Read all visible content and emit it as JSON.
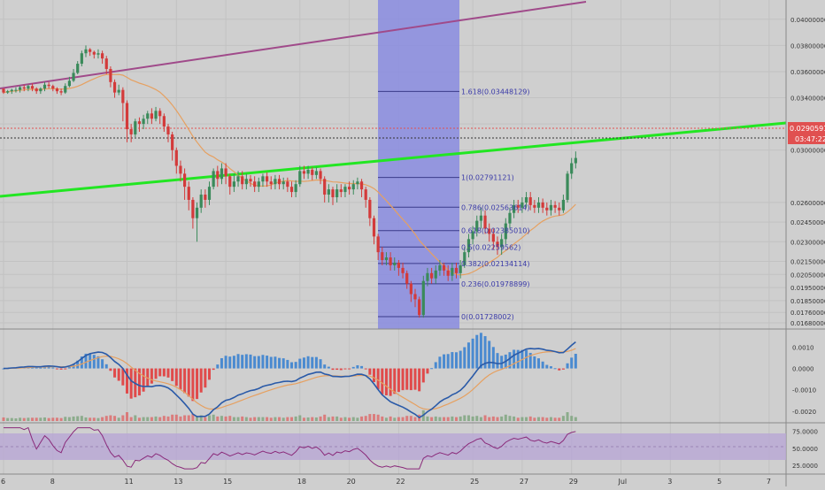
{
  "chart_data": [
    {
      "type": "candlestick",
      "y_scale": {
        "min": 0.0166,
        "max": 0.0412
      },
      "price_ticks": [
        "0.04000000",
        "0.03800000",
        "0.03600000",
        "0.03400000",
        "0.03200000",
        "0.03000000",
        "0.02600000",
        "0.02450000",
        "0.02300000",
        "0.02150000",
        "0.02050000",
        "0.01950000",
        "0.01850000",
        "0.01760000",
        "0.01680000"
      ],
      "current_price_label": "0.02905911",
      "countdown_label": "03:47:22",
      "fib_levels": [
        {
          "label": "1.618(0.03448129)",
          "price": 0.03448129
        },
        {
          "label": "1(0.02791121)",
          "price": 0.02791121
        },
        {
          "label": "0.786(0.02563614)",
          "price": 0.02563614
        },
        {
          "label": "0.618(0.02385010)",
          "price": 0.0238501
        },
        {
          "label": "0.5(0.02259562)",
          "price": 0.02259562
        },
        {
          "label": "0.382(0.02134114)",
          "price": 0.02134114
        },
        {
          "label": "0.236(0.01978899)",
          "price": 0.01978899
        },
        {
          "label": "0(0.01728002)",
          "price": 0.01728002
        }
      ],
      "fib_box_color": "#8a8ce0",
      "trendline_color": "#22e622",
      "channel_color": "#a04a8a",
      "ma_color": "#e6a060",
      "up_color": "#3a8a5a",
      "down_color": "#d33a3a",
      "candles": [
        [
          0.0347,
          0.0344,
          0.0343,
          0.0346
        ],
        [
          0.0344,
          0.0345,
          0.0343,
          0.0346
        ],
        [
          0.0345,
          0.0346,
          0.0343,
          0.0347
        ],
        [
          0.0346,
          0.0346,
          0.0344,
          0.0348
        ],
        [
          0.0346,
          0.0348,
          0.0344,
          0.0349
        ],
        [
          0.0348,
          0.0347,
          0.0345,
          0.035
        ],
        [
          0.0347,
          0.0349,
          0.0345,
          0.035
        ],
        [
          0.0349,
          0.0347,
          0.0345,
          0.0351
        ],
        [
          0.0347,
          0.0345,
          0.0343,
          0.0348
        ],
        [
          0.0345,
          0.0347,
          0.0343,
          0.0348
        ],
        [
          0.0347,
          0.035,
          0.0345,
          0.0352
        ],
        [
          0.035,
          0.0349,
          0.0347,
          0.0352
        ],
        [
          0.0349,
          0.0347,
          0.0345,
          0.035
        ],
        [
          0.0347,
          0.0345,
          0.0343,
          0.0348
        ],
        [
          0.0345,
          0.0344,
          0.0342,
          0.0347
        ],
        [
          0.0344,
          0.0349,
          0.0343,
          0.0351
        ],
        [
          0.0349,
          0.0353,
          0.0348,
          0.0356
        ],
        [
          0.0353,
          0.0359,
          0.0352,
          0.0362
        ],
        [
          0.0359,
          0.0366,
          0.0358,
          0.0368
        ],
        [
          0.0366,
          0.0374,
          0.0364,
          0.0376
        ],
        [
          0.0374,
          0.0377,
          0.0371,
          0.038
        ],
        [
          0.0377,
          0.0375,
          0.0372,
          0.0378
        ],
        [
          0.0375,
          0.0373,
          0.037,
          0.0376
        ],
        [
          0.0373,
          0.0374,
          0.037,
          0.0377
        ],
        [
          0.0374,
          0.037,
          0.0366,
          0.0376
        ],
        [
          0.037,
          0.0362,
          0.0358,
          0.0372
        ],
        [
          0.0362,
          0.0352,
          0.0348,
          0.0364
        ],
        [
          0.0352,
          0.0344,
          0.034,
          0.0354
        ],
        [
          0.0344,
          0.0346,
          0.0342,
          0.035
        ],
        [
          0.0346,
          0.0336,
          0.0322,
          0.0348
        ],
        [
          0.0336,
          0.0316,
          0.0306,
          0.0338
        ],
        [
          0.0316,
          0.0312,
          0.0306,
          0.032
        ],
        [
          0.0312,
          0.0322,
          0.031,
          0.0324
        ],
        [
          0.0322,
          0.032,
          0.0314,
          0.0325
        ],
        [
          0.032,
          0.0324,
          0.0316,
          0.0327
        ],
        [
          0.0324,
          0.0328,
          0.032,
          0.033
        ],
        [
          0.0328,
          0.0324,
          0.032,
          0.0332
        ],
        [
          0.0324,
          0.033,
          0.0322,
          0.0333
        ],
        [
          0.033,
          0.0326,
          0.032,
          0.0332
        ],
        [
          0.0326,
          0.0318,
          0.0314,
          0.0328
        ],
        [
          0.0318,
          0.0312,
          0.0306,
          0.032
        ],
        [
          0.0312,
          0.03,
          0.0292,
          0.0314
        ],
        [
          0.03,
          0.0288,
          0.0282,
          0.0302
        ],
        [
          0.0288,
          0.0282,
          0.0276,
          0.0292
        ],
        [
          0.0282,
          0.0272,
          0.0262,
          0.0286
        ],
        [
          0.0272,
          0.0262,
          0.0254,
          0.0276
        ],
        [
          0.0262,
          0.0248,
          0.024,
          0.0264
        ],
        [
          0.0248,
          0.0256,
          0.023,
          0.026
        ],
        [
          0.0256,
          0.0266,
          0.0252,
          0.027
        ],
        [
          0.0266,
          0.0262,
          0.0256,
          0.027
        ],
        [
          0.0262,
          0.0272,
          0.0258,
          0.0276
        ],
        [
          0.0272,
          0.0284,
          0.027,
          0.0286
        ],
        [
          0.0284,
          0.0278,
          0.0272,
          0.0288
        ],
        [
          0.0278,
          0.0286,
          0.0274,
          0.029
        ],
        [
          0.0286,
          0.028,
          0.0274,
          0.029
        ],
        [
          0.028,
          0.0272,
          0.0266,
          0.0282
        ],
        [
          0.0272,
          0.0276,
          0.0268,
          0.0282
        ],
        [
          0.0276,
          0.028,
          0.0272,
          0.0284
        ],
        [
          0.028,
          0.0274,
          0.027,
          0.0284
        ],
        [
          0.0274,
          0.0278,
          0.027,
          0.0282
        ],
        [
          0.0278,
          0.0276,
          0.0272,
          0.0281
        ],
        [
          0.0276,
          0.0272,
          0.0268,
          0.028
        ],
        [
          0.0272,
          0.0276,
          0.0268,
          0.0279
        ],
        [
          0.0276,
          0.028,
          0.0272,
          0.0282
        ],
        [
          0.028,
          0.0276,
          0.0272,
          0.0283
        ],
        [
          0.0276,
          0.0274,
          0.027,
          0.028
        ],
        [
          0.0274,
          0.0278,
          0.027,
          0.0281
        ],
        [
          0.0278,
          0.0274,
          0.027,
          0.0281
        ],
        [
          0.0274,
          0.0276,
          0.027,
          0.0279
        ],
        [
          0.0276,
          0.0272,
          0.0268,
          0.0279
        ],
        [
          0.0272,
          0.0268,
          0.0264,
          0.0276
        ],
        [
          0.0268,
          0.0274,
          0.0264,
          0.0277
        ],
        [
          0.0274,
          0.0284,
          0.0272,
          0.0288
        ],
        [
          0.0284,
          0.0282,
          0.0278,
          0.0288
        ],
        [
          0.0282,
          0.0285,
          0.0278,
          0.0288
        ],
        [
          0.0285,
          0.0281,
          0.0277,
          0.0287
        ],
        [
          0.0281,
          0.0284,
          0.0278,
          0.0287
        ],
        [
          0.0284,
          0.0278,
          0.0274,
          0.0286
        ],
        [
          0.0278,
          0.0266,
          0.026,
          0.028
        ],
        [
          0.0266,
          0.027,
          0.026,
          0.0274
        ],
        [
          0.027,
          0.0264,
          0.0258,
          0.0272
        ],
        [
          0.0264,
          0.027,
          0.026,
          0.0274
        ],
        [
          0.027,
          0.0268,
          0.0264,
          0.0274
        ],
        [
          0.0268,
          0.0272,
          0.0264,
          0.0274
        ],
        [
          0.0272,
          0.027,
          0.0266,
          0.0276
        ],
        [
          0.027,
          0.0274,
          0.0266,
          0.0277
        ],
        [
          0.0274,
          0.0276,
          0.027,
          0.0279
        ],
        [
          0.0276,
          0.027,
          0.0264,
          0.0278
        ],
        [
          0.027,
          0.0262,
          0.0256,
          0.0272
        ],
        [
          0.0262,
          0.0248,
          0.0242,
          0.0264
        ],
        [
          0.0248,
          0.0234,
          0.0228,
          0.025
        ],
        [
          0.0234,
          0.0222,
          0.0216,
          0.0236
        ],
        [
          0.0222,
          0.0216,
          0.0212,
          0.0226
        ],
        [
          0.0216,
          0.0218,
          0.0212,
          0.0222
        ],
        [
          0.0218,
          0.0212,
          0.0208,
          0.0222
        ],
        [
          0.0212,
          0.0214,
          0.0208,
          0.0218
        ],
        [
          0.0214,
          0.021,
          0.0204,
          0.0216
        ],
        [
          0.021,
          0.0206,
          0.0202,
          0.0214
        ],
        [
          0.0206,
          0.0198,
          0.0194,
          0.0208
        ],
        [
          0.0198,
          0.019,
          0.0184,
          0.02
        ],
        [
          0.019,
          0.0186,
          0.018,
          0.0194
        ],
        [
          0.0186,
          0.0174,
          0.0172,
          0.0188
        ],
        [
          0.0174,
          0.02,
          0.0172,
          0.0204
        ],
        [
          0.02,
          0.0206,
          0.0196,
          0.021
        ],
        [
          0.0206,
          0.0202,
          0.0198,
          0.021
        ],
        [
          0.0202,
          0.0208,
          0.0198,
          0.0212
        ],
        [
          0.0208,
          0.0212,
          0.0204,
          0.0216
        ],
        [
          0.0212,
          0.0208,
          0.0204,
          0.0214
        ],
        [
          0.0208,
          0.0204,
          0.02,
          0.0212
        ],
        [
          0.0204,
          0.021,
          0.02,
          0.0214
        ],
        [
          0.021,
          0.0206,
          0.0202,
          0.0214
        ],
        [
          0.0206,
          0.0212,
          0.0202,
          0.0216
        ],
        [
          0.0212,
          0.0222,
          0.021,
          0.0226
        ],
        [
          0.0222,
          0.0232,
          0.0218,
          0.0236
        ],
        [
          0.0232,
          0.0238,
          0.0228,
          0.0242
        ],
        [
          0.0238,
          0.0246,
          0.0234,
          0.025
        ],
        [
          0.0246,
          0.025,
          0.024,
          0.0256
        ],
        [
          0.025,
          0.024,
          0.0236,
          0.0254
        ],
        [
          0.024,
          0.0236,
          0.023,
          0.0244
        ],
        [
          0.0236,
          0.023,
          0.0224,
          0.024
        ],
        [
          0.023,
          0.0226,
          0.022,
          0.0234
        ],
        [
          0.0226,
          0.0232,
          0.022,
          0.0236
        ],
        [
          0.0232,
          0.0244,
          0.0228,
          0.0248
        ],
        [
          0.0244,
          0.0252,
          0.024,
          0.0256
        ],
        [
          0.0252,
          0.0258,
          0.0248,
          0.0262
        ],
        [
          0.0258,
          0.0256,
          0.0252,
          0.0262
        ],
        [
          0.0256,
          0.026,
          0.0252,
          0.0264
        ],
        [
          0.026,
          0.0264,
          0.0256,
          0.0268
        ],
        [
          0.0264,
          0.0258,
          0.0254,
          0.0268
        ],
        [
          0.0258,
          0.0256,
          0.0252,
          0.0262
        ],
        [
          0.0256,
          0.026,
          0.0252,
          0.0264
        ],
        [
          0.026,
          0.0256,
          0.0252,
          0.0263
        ],
        [
          0.0256,
          0.0254,
          0.025,
          0.026
        ],
        [
          0.0254,
          0.0258,
          0.025,
          0.0262
        ],
        [
          0.0258,
          0.0256,
          0.0252,
          0.0261
        ],
        [
          0.0256,
          0.0254,
          0.025,
          0.026
        ],
        [
          0.0254,
          0.0262,
          0.0252,
          0.0266
        ],
        [
          0.0262,
          0.0282,
          0.026,
          0.0284
        ],
        [
          0.0282,
          0.029,
          0.0278,
          0.0294
        ],
        [
          0.029,
          0.0294,
          0.0286,
          0.0299
        ]
      ],
      "date_labels": [
        {
          "label": "6",
          "index": 0
        },
        {
          "label": "8",
          "index": 12
        },
        {
          "label": "11",
          "index": 30
        },
        {
          "label": "13",
          "index": 42
        },
        {
          "label": "15",
          "index": 54
        },
        {
          "label": "18",
          "index": 72
        },
        {
          "label": "20",
          "index": 84
        },
        {
          "label": "22",
          "index": 96
        },
        {
          "label": "25",
          "index": 114
        },
        {
          "label": "27",
          "index": 126
        },
        {
          "label": "29",
          "index": 138
        },
        {
          "label": "Jul",
          "index": 150
        },
        {
          "label": "3",
          "index": 162
        },
        {
          "label": "5",
          "index": 174
        },
        {
          "label": "7",
          "index": 186
        }
      ]
    },
    {
      "type": "macd",
      "ticks": [
        "0.0010",
        "0.0000",
        "-0.0010",
        "-0.0020"
      ],
      "y_scale": {
        "min": -0.0023,
        "max": 0.0016
      },
      "macd_color": "#2a5aa8",
      "signal_color": "#e6a060"
    },
    {
      "type": "rsi",
      "ticks": [
        "75.0000",
        "50.0000",
        "25.0000"
      ],
      "y_scale": {
        "min": 15,
        "max": 82
      },
      "band_color": "#b8a6d4",
      "line_color": "#8a2a7a"
    }
  ]
}
